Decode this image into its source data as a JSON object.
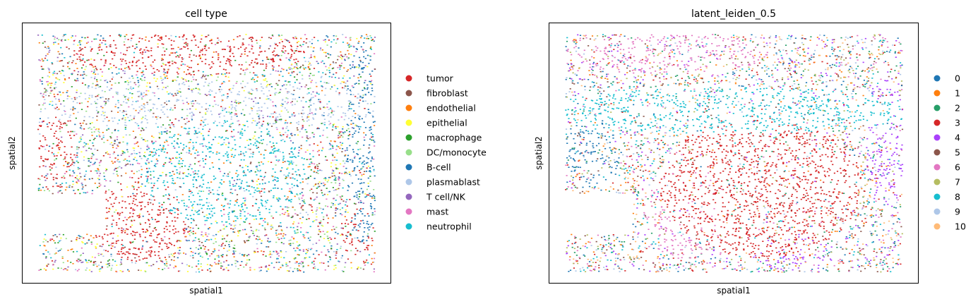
{
  "chart_data": [
    {
      "type": "scatter",
      "title": "cell type",
      "xlabel": "spatial1",
      "ylabel": "spatial2",
      "ticks": false,
      "grid": false,
      "legend_placement": "right",
      "legend": [
        {
          "label": "tumor",
          "color": "#d62728"
        },
        {
          "label": "fibroblast",
          "color": "#8c564b"
        },
        {
          "label": "endothelial",
          "color": "#ff7f0e"
        },
        {
          "label": "epithelial",
          "color": "#ffff33"
        },
        {
          "label": "macrophage",
          "color": "#2ca02c"
        },
        {
          "label": "DC/monocyte",
          "color": "#98df8a"
        },
        {
          "label": "B-cell",
          "color": "#1f77b4"
        },
        {
          "label": "plasmablast",
          "color": "#aec7e8"
        },
        {
          "label": "T cell/NK",
          "color": "#9467bd"
        },
        {
          "label": "mast",
          "color": "#e377c2"
        },
        {
          "label": "neutrophil",
          "color": "#17becf"
        }
      ]
    },
    {
      "type": "scatter",
      "title": "latent_leiden_0.5",
      "xlabel": "spatial1",
      "ylabel": "spatial2",
      "ticks": false,
      "grid": false,
      "legend_placement": "right",
      "legend": [
        {
          "label": "0",
          "color": "#1f77b4"
        },
        {
          "label": "1",
          "color": "#ff7f0e"
        },
        {
          "label": "2",
          "color": "#279e68"
        },
        {
          "label": "3",
          "color": "#d62728"
        },
        {
          "label": "4",
          "color": "#aa40fc"
        },
        {
          "label": "5",
          "color": "#8c564b"
        },
        {
          "label": "6",
          "color": "#e377c2"
        },
        {
          "label": "7",
          "color": "#b5bd61"
        },
        {
          "label": "8",
          "color": "#17becf"
        },
        {
          "label": "9",
          "color": "#aec7e8"
        },
        {
          "label": "10",
          "color": "#ffbb78"
        }
      ]
    }
  ]
}
